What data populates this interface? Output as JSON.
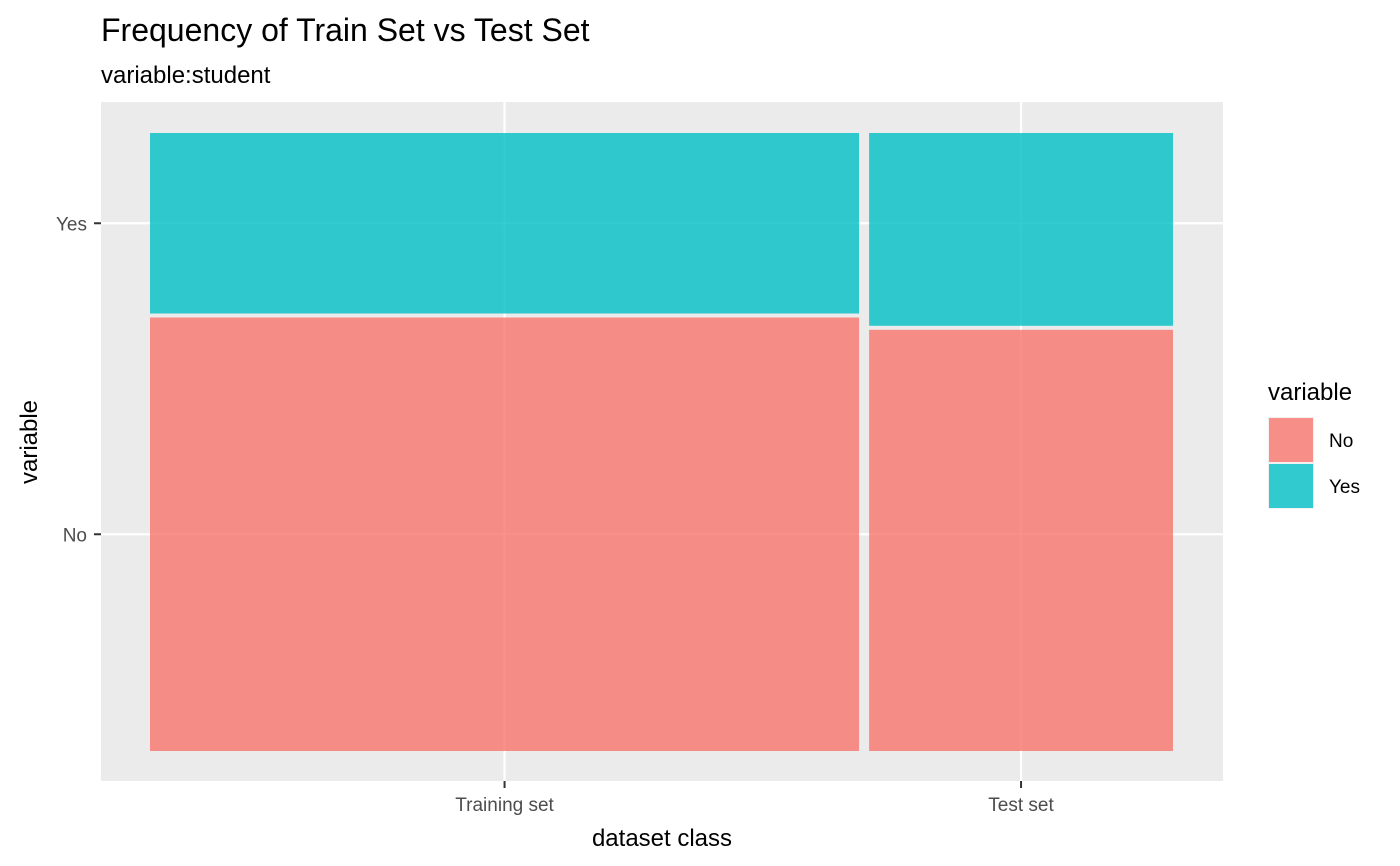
{
  "chart_data": {
    "type": "mosaic",
    "title": "Frequency of Train Set vs Test Set",
    "subtitle": "variable:student",
    "xlabel": "dataset class",
    "ylabel": "variable",
    "categories": [
      "Training set",
      "Test set"
    ],
    "category_share": [
      0.7,
      0.3
    ],
    "levels": [
      "No",
      "Yes"
    ],
    "y_tick_labels": [
      "No",
      "Yes"
    ],
    "series": [
      {
        "name": "No",
        "values": [
          0.706,
          0.686
        ]
      },
      {
        "name": "Yes",
        "values": [
          0.294,
          0.314
        ]
      }
    ],
    "colors": {
      "No": "#F8766D",
      "Yes": "#00BFC4"
    },
    "legend": {
      "title": "variable",
      "position": "right"
    },
    "grid": true
  }
}
